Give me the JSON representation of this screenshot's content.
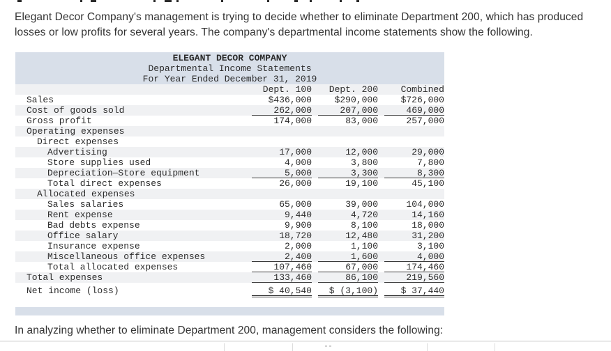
{
  "intro": {
    "lines": [
      "Elegant Decor Company's management is trying to decide whether to eliminate Department 200, which has produced",
      "losses or low profits for several years. The company's departmental income statements show the following."
    ]
  },
  "statement": {
    "title": "ELEGANT DECOR COMPANY",
    "subtitle": "Departmental Income Statements",
    "period": "For Year Ended December 31, 2019",
    "columns": [
      "Dept. 100",
      "Dept. 200",
      "Combined"
    ],
    "rows": [
      {
        "label": "Sales",
        "indent": 0,
        "values": [
          "$436,000",
          "$290,000",
          "$726,000"
        ]
      },
      {
        "label": "Cost of goods sold",
        "indent": 0,
        "values": [
          "262,000",
          "207,000",
          "469,000"
        ],
        "underline": "single"
      },
      {
        "label": "Gross profit",
        "indent": 0,
        "values": [
          "174,000",
          "83,000",
          "257,000"
        ]
      },
      {
        "label": "Operating expenses",
        "indent": 0,
        "values": [
          "",
          "",
          ""
        ]
      },
      {
        "label": "Direct expenses",
        "indent": 1,
        "values": [
          "",
          "",
          ""
        ]
      },
      {
        "label": "Advertising",
        "indent": 2,
        "values": [
          "17,000",
          "12,000",
          "29,000"
        ]
      },
      {
        "label": "Store supplies used",
        "indent": 2,
        "values": [
          "4,000",
          "3,800",
          "7,800"
        ]
      },
      {
        "label": "Depreciation—Store equipment",
        "indent": 2,
        "values": [
          "5,000",
          "3,300",
          "8,300"
        ],
        "underline": "single"
      },
      {
        "label": "Total direct expenses",
        "indent": 2,
        "values": [
          "26,000",
          "19,100",
          "45,100"
        ]
      },
      {
        "label": "Allocated expenses",
        "indent": 1,
        "values": [
          "",
          "",
          ""
        ]
      },
      {
        "label": "Sales salaries",
        "indent": 2,
        "values": [
          "65,000",
          "39,000",
          "104,000"
        ]
      },
      {
        "label": "Rent expense",
        "indent": 2,
        "values": [
          "9,440",
          "4,720",
          "14,160"
        ]
      },
      {
        "label": "Bad debts expense",
        "indent": 2,
        "values": [
          "9,900",
          "8,100",
          "18,000"
        ]
      },
      {
        "label": "Office salary",
        "indent": 2,
        "values": [
          "18,720",
          "12,480",
          "31,200"
        ]
      },
      {
        "label": "Insurance expense",
        "indent": 2,
        "values": [
          "2,000",
          "1,100",
          "3,100"
        ]
      },
      {
        "label": "Miscellaneous office expenses",
        "indent": 2,
        "values": [
          "2,400",
          "1,600",
          "4,000"
        ],
        "underline": "single"
      },
      {
        "label": "Total allocated expenses",
        "indent": 2,
        "values": [
          "107,460",
          "67,000",
          "174,460"
        ],
        "underline": "single"
      },
      {
        "label": "Total expenses",
        "indent": 0,
        "values": [
          "133,460",
          "86,100",
          "219,560"
        ],
        "underline": "single"
      },
      {
        "label": "Net income (loss)",
        "indent": 0,
        "values": [
          "$ 40,540",
          "$ (3,100)",
          "$ 37,440"
        ],
        "underline": "double",
        "tall": true
      }
    ]
  },
  "footer": {
    "text": "In analyzing whether to eliminate Department 200, management considers the following:"
  },
  "colors": {
    "header_band": "#d8dfe9",
    "row_stripe": "#f0f1f3",
    "body_text": "#333333",
    "table_text": "#2b2b2b"
  }
}
